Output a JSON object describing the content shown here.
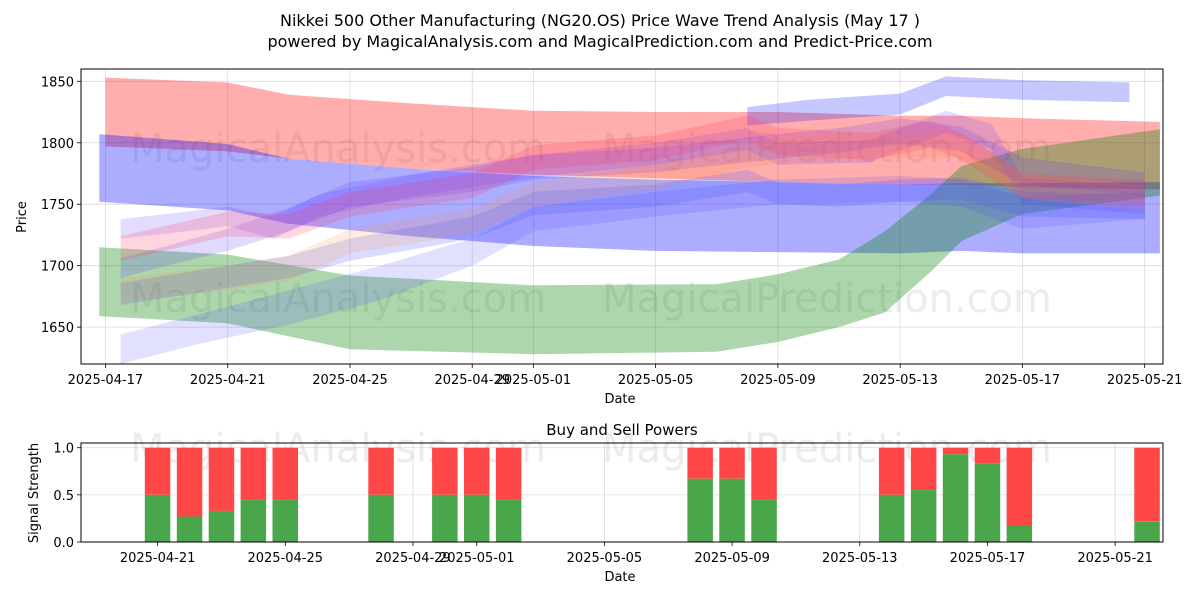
{
  "chart_data": [
    {
      "type": "area",
      "title_line1": "Nikkei 500 Other Manufacturing (NG20.OS) Price Wave Trend Analysis (May 17 )",
      "title_line2": "powered by MagicalAnalysis.com and MagicalPrediction.com and Predict-Price.com",
      "xlabel": "Date",
      "ylabel": "Price",
      "xlim_days": [
        -0.8,
        34.6
      ],
      "ylim": [
        1620,
        1860
      ],
      "yticks": [
        1650,
        1700,
        1750,
        1800,
        1850
      ],
      "xticks": [
        {
          "day": 0,
          "label": "2025-04-17"
        },
        {
          "day": 4,
          "label": "2025-04-21"
        },
        {
          "day": 8,
          "label": "2025-04-25"
        },
        {
          "day": 12,
          "label": "2025-04-29"
        },
        {
          "day": 14,
          "label": "2025-05-01"
        },
        {
          "day": 18,
          "label": "2025-05-05"
        },
        {
          "day": 22,
          "label": "2025-05-09"
        },
        {
          "day": 26,
          "label": "2025-05-13"
        },
        {
          "day": 30,
          "label": "2025-05-17"
        },
        {
          "day": 34,
          "label": "2025-05-21"
        }
      ],
      "watermarks": [
        "MagicalAnalysis.com",
        "MagicalPrediction.com",
        "MagicalAnalysis.com",
        "MagicalPrediction.com"
      ],
      "bands": [
        {
          "name": "red-upper",
          "color": "#ff0000",
          "opacity": 0.32,
          "x": [
            0,
            4,
            6,
            10,
            14,
            18,
            22,
            26,
            28,
            30,
            34.5
          ],
          "upper": [
            1853,
            1849,
            1839,
            1832,
            1826,
            1825,
            1825,
            1822,
            1822,
            1820,
            1817
          ],
          "lower": [
            1797,
            1793,
            1787,
            1779,
            1774,
            1771,
            1768,
            1766,
            1766,
            1764,
            1762
          ]
        },
        {
          "name": "blue-lower",
          "color": "#0000ff",
          "opacity": 0.32,
          "x": [
            -0.2,
            4,
            6,
            10,
            14,
            18,
            22,
            26,
            28,
            30,
            34.5
          ],
          "upper": [
            1807,
            1799,
            1787,
            1779,
            1773,
            1770,
            1768,
            1766,
            1767,
            1767,
            1768
          ],
          "lower": [
            1752,
            1745,
            1734,
            1724,
            1716,
            1712,
            1711,
            1710,
            1712,
            1710,
            1710
          ]
        },
        {
          "name": "green-main",
          "color": "#008000",
          "opacity": 0.32,
          "x": [
            -0.2,
            4,
            8,
            14,
            20,
            22,
            24,
            25.5,
            27,
            28,
            30,
            34.5
          ],
          "upper": [
            1715,
            1709,
            1692,
            1684,
            1685,
            1693,
            1705,
            1728,
            1758,
            1781,
            1795,
            1811
          ],
          "lower": [
            1659,
            1653,
            1632,
            1628,
            1630,
            1638,
            1650,
            1662,
            1695,
            1720,
            1742,
            1757
          ]
        },
        {
          "name": "blue-top",
          "color": "#0000ff",
          "opacity": 0.22,
          "x": [
            21,
            23,
            26,
            27.5,
            30,
            33.5
          ],
          "upper": [
            1829,
            1835,
            1840,
            1854,
            1851,
            1849
          ],
          "lower": [
            1814,
            1818,
            1823,
            1838,
            1835,
            1833
          ]
        },
        {
          "name": "purple-1",
          "color": "#5a32ff",
          "opacity": 0.18,
          "x": [
            0.5,
            2,
            4,
            6,
            8,
            12,
            14,
            18,
            22,
            24,
            26,
            28,
            30,
            34
          ],
          "upper": [
            1706,
            1716,
            1730,
            1747,
            1768,
            1780,
            1790,
            1796,
            1807,
            1812,
            1820,
            1813,
            1788,
            1776
          ],
          "lower": [
            1690,
            1700,
            1712,
            1728,
            1748,
            1760,
            1770,
            1776,
            1787,
            1792,
            1799,
            1793,
            1766,
            1757
          ]
        },
        {
          "name": "purple-2",
          "color": "#6a3cff",
          "opacity": 0.18,
          "x": [
            0.5,
            2,
            4,
            5.5,
            7,
            10,
            14,
            18,
            21,
            22,
            25,
            27.5,
            29,
            30,
            34
          ],
          "upper": [
            1738,
            1742,
            1748,
            1740,
            1758,
            1774,
            1790,
            1800,
            1812,
            1800,
            1802,
            1826,
            1815,
            1772,
            1764
          ],
          "lower": [
            1722,
            1726,
            1732,
            1722,
            1740,
            1756,
            1772,
            1782,
            1794,
            1782,
            1784,
            1808,
            1795,
            1750,
            1742
          ]
        },
        {
          "name": "purple-3",
          "color": "#4050ff",
          "opacity": 0.2,
          "x": [
            0.5,
            2,
            4,
            6,
            8,
            12,
            14,
            18,
            21,
            22,
            24,
            26,
            28,
            30,
            34
          ],
          "upper": [
            1686,
            1692,
            1700,
            1708,
            1722,
            1740,
            1760,
            1766,
            1778,
            1768,
            1766,
            1770,
            1772,
            1760,
            1758
          ],
          "lower": [
            1668,
            1674,
            1682,
            1690,
            1704,
            1722,
            1741,
            1748,
            1760,
            1750,
            1748,
            1752,
            1754,
            1740,
            1738
          ]
        },
        {
          "name": "purple-4",
          "color": "#4b3cff",
          "opacity": 0.16,
          "x": [
            0.5,
            3,
            6,
            9,
            12,
            14,
            18,
            22,
            26,
            28,
            30,
            34
          ],
          "upper": [
            1644,
            1660,
            1680,
            1700,
            1722,
            1748,
            1760,
            1770,
            1773,
            1770,
            1756,
            1760
          ],
          "lower": [
            1620,
            1636,
            1652,
            1672,
            1700,
            1728,
            1740,
            1750,
            1752,
            1748,
            1730,
            1738
          ]
        },
        {
          "name": "pink-1",
          "color": "#ff3060",
          "opacity": 0.2,
          "x": [
            0.5,
            4,
            6,
            8,
            12,
            14,
            18,
            21,
            22,
            25,
            27,
            28,
            30,
            34
          ],
          "upper": [
            1724,
            1744,
            1742,
            1760,
            1775,
            1798,
            1806,
            1822,
            1812,
            1808,
            1818,
            1808,
            1775,
            1770
          ],
          "lower": [
            1704,
            1724,
            1722,
            1740,
            1755,
            1778,
            1786,
            1802,
            1790,
            1786,
            1796,
            1786,
            1755,
            1750
          ]
        },
        {
          "name": "orange-1",
          "color": "#ff8040",
          "opacity": 0.16,
          "x": [
            0.5,
            4,
            6,
            8,
            12,
            14,
            18,
            21,
            23,
            26,
            28,
            30,
            34
          ],
          "upper": [
            1690,
            1700,
            1708,
            1730,
            1746,
            1768,
            1782,
            1800,
            1806,
            1808,
            1808,
            1775,
            1765
          ],
          "lower": [
            1670,
            1680,
            1688,
            1710,
            1726,
            1748,
            1762,
            1780,
            1786,
            1788,
            1788,
            1755,
            1745
          ]
        }
      ]
    },
    {
      "type": "bar",
      "title": "Buy and Sell Powers",
      "xlabel": "Date",
      "ylabel": "Signal Strength",
      "ylim": [
        0,
        1.05
      ],
      "yticks": [
        {
          "value": 0.0,
          "label": "0.0"
        },
        {
          "value": 0.5,
          "label": "0.5"
        },
        {
          "value": 1.0,
          "label": "1.0"
        }
      ],
      "xlim_days": [
        1.6,
        35.5
      ],
      "xticks": [
        {
          "day": 4,
          "label": "2025-04-21"
        },
        {
          "day": 8,
          "label": "2025-04-25"
        },
        {
          "day": 12,
          "label": "2025-04-29"
        },
        {
          "day": 14,
          "label": "2025-05-01"
        },
        {
          "day": 18,
          "label": "2025-05-05"
        },
        {
          "day": 22,
          "label": "2025-05-09"
        },
        {
          "day": 26,
          "label": "2025-05-13"
        },
        {
          "day": 30,
          "label": "2025-05-17"
        },
        {
          "day": 34,
          "label": "2025-05-21"
        }
      ],
      "series": [
        {
          "name": "Buy",
          "color": "#4aa64a"
        },
        {
          "name": "Sell",
          "color": "#ff4747"
        }
      ],
      "watermarks": [
        "MagicalAnalysis.com",
        "MagicalPrediction.com"
      ],
      "bars": [
        {
          "day": 4,
          "buy": 0.5
        },
        {
          "day": 5,
          "buy": 0.27
        },
        {
          "day": 6,
          "buy": 0.33
        },
        {
          "day": 7,
          "buy": 0.45
        },
        {
          "day": 8,
          "buy": 0.45
        },
        {
          "day": 11,
          "buy": 0.5
        },
        {
          "day": 13,
          "buy": 0.5
        },
        {
          "day": 14,
          "buy": 0.5
        },
        {
          "day": 15,
          "buy": 0.45
        },
        {
          "day": 21,
          "buy": 0.67
        },
        {
          "day": 22,
          "buy": 0.67
        },
        {
          "day": 23,
          "buy": 0.45
        },
        {
          "day": 27,
          "buy": 0.5
        },
        {
          "day": 28,
          "buy": 0.55
        },
        {
          "day": 29,
          "buy": 0.93
        },
        {
          "day": 30,
          "buy": 0.83
        },
        {
          "day": 31,
          "buy": 0.17
        },
        {
          "day": 35,
          "buy": 0.22
        }
      ]
    }
  ]
}
